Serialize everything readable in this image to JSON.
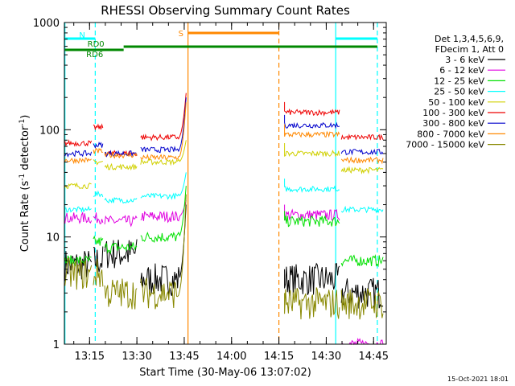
{
  "chart_data": {
    "type": "line",
    "title": "RHESSI Observing Summary Count Rates",
    "xlabel": "Start Time (30-May-06 13:07:02)",
    "ylabel_main": "Count Rate (s",
    "ylabel_sup1": "-1",
    "ylabel_mid": " detector",
    "ylabel_sup2": "-1",
    "ylabel_end": ")",
    "yscale": "log",
    "ylim": [
      1,
      1000
    ],
    "xlim_minutes": [
      13.117,
      14.817
    ],
    "x_ticks": [
      {
        "label": "13:15",
        "t": 13.25
      },
      {
        "label": "13:30",
        "t": 13.5
      },
      {
        "label": "13:45",
        "t": 13.75
      },
      {
        "label": "14:00",
        "t": 14.0
      },
      {
        "label": "14:15",
        "t": 14.25
      },
      {
        "label": "14:30",
        "t": 14.5
      },
      {
        "label": "14:45",
        "t": 14.75
      }
    ],
    "y_ticks": [
      {
        "label": "1",
        "v": 1
      },
      {
        "label": "10",
        "v": 10
      },
      {
        "label": "100",
        "v": 100
      },
      {
        "label": "1000",
        "v": 1000
      }
    ],
    "legend_header": [
      "Det 1,3,4,5,6,9,",
      "FDecim 1, Att 0"
    ],
    "series": [
      {
        "name": "3 - 6 keV",
        "color": "#000000"
      },
      {
        "name": "6 - 12 keV",
        "color": "#e000e0"
      },
      {
        "name": "12 - 25 keV",
        "color": "#00e000"
      },
      {
        "name": "25 - 50 keV",
        "color": "#00ffff"
      },
      {
        "name": "50 - 100 keV",
        "color": "#d0d000"
      },
      {
        "name": "100 - 300 keV",
        "color": "#ee0000"
      },
      {
        "name": "300 - 800 keV",
        "color": "#0000cc"
      },
      {
        "name": "800 - 7000 keV",
        "color": "#ff8800"
      },
      {
        "name": "7000 - 15000 keV",
        "color": "#888800"
      }
    ],
    "segments": [
      {
        "t0": 13.12,
        "t1": 13.26,
        "values": [
          5.5,
          15,
          6,
          18,
          30,
          75,
          60,
          52,
          4.5
        ]
      },
      {
        "t0": 13.27,
        "t1": 13.32,
        "values": [
          6,
          15,
          9,
          25,
          50,
          105,
          72,
          63,
          4.5
        ]
      },
      {
        "t0": 13.33,
        "t1": 13.5,
        "values": [
          7,
          14,
          8,
          22,
          45,
          60,
          60,
          58,
          3
        ]
      },
      {
        "t0": 13.52,
        "t1": 13.72,
        "values": [
          4,
          15.5,
          10,
          24,
          50,
          85,
          65,
          55,
          3
        ]
      },
      {
        "t0": 14.28,
        "t1": 14.57,
        "values": [
          4,
          16,
          14,
          28,
          60,
          145,
          110,
          90,
          2.4
        ]
      },
      {
        "t0": 14.58,
        "t1": 14.8,
        "values": [
          3,
          1,
          6,
          18,
          42,
          85,
          62,
          52,
          2.4
        ]
      }
    ],
    "flare_peak": {
      "t": 13.76,
      "values": [
        20,
        22,
        30,
        40,
        80,
        220,
        200,
        180,
        25
      ]
    },
    "vertical_markers": [
      {
        "t": 13.12,
        "color": "#00ffff",
        "style": "solid"
      },
      {
        "t": 13.28,
        "color": "#00ffff",
        "style": "dashed"
      },
      {
        "t": 13.77,
        "color": "#ff8800",
        "style": "solid"
      },
      {
        "t": 14.25,
        "color": "#ff8800",
        "style": "dashed"
      },
      {
        "t": 14.55,
        "color": "#00ffff",
        "style": "solid"
      },
      {
        "t": 14.77,
        "color": "#00ffff",
        "style": "dashed"
      }
    ],
    "flag_bars": [
      {
        "label": "N",
        "color": "#00ffff",
        "t0": 13.12,
        "t1": 13.28,
        "row": 0
      },
      {
        "label": "",
        "color": "#00ffff",
        "t0": 14.55,
        "t1": 14.77,
        "row": 0
      },
      {
        "label": "S",
        "color": "#ff8800",
        "t0": 13.77,
        "t1": 14.25,
        "row": -1
      },
      {
        "label": "RD0",
        "color": "#008800",
        "t0": 13.43,
        "t1": 14.77,
        "row": 1
      },
      {
        "label": "RD6",
        "color": "#008800",
        "t0": 13.12,
        "t1": 13.43,
        "row": 2
      }
    ]
  },
  "footer": {
    "timestamp": "15-Oct-2021 18:01"
  }
}
